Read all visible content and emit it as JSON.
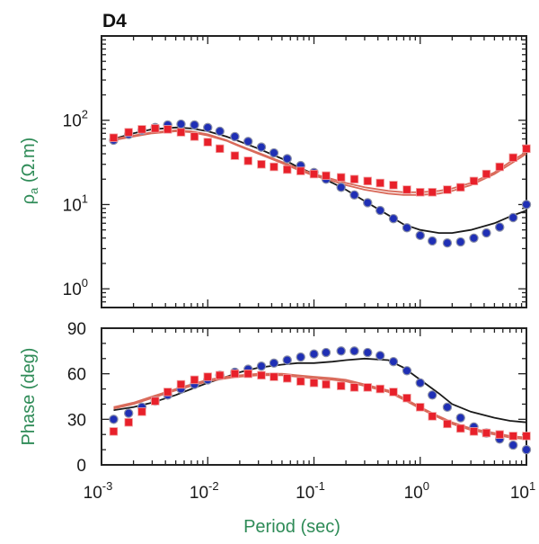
{
  "chart_data": [
    {
      "type": "scatter",
      "title": "D4",
      "ylabel_main": "ρ",
      "ylabel_sub": "a",
      "ylabel_unit": " (Ω.m)",
      "xscale": "log",
      "yscale": "log",
      "xlim": [
        0.001,
        10
      ],
      "ylim": [
        0.6,
        1000
      ],
      "yticks": [
        {
          "value": 1,
          "base": "10",
          "exp": "0"
        },
        {
          "value": 10,
          "base": "10",
          "exp": "1"
        },
        {
          "value": 100,
          "base": "10",
          "exp": "2"
        }
      ],
      "colors": {
        "blue": "#1f2fb5",
        "red": "#e8202a",
        "black_line": "#1a1a1a",
        "red_line": "#d96a5a"
      },
      "series": [
        {
          "marker": "circle",
          "color": "#1f2fb5",
          "x": [
            0.0013,
            0.0018,
            0.0024,
            0.0032,
            0.0042,
            0.0056,
            0.0075,
            0.01,
            0.013,
            0.018,
            0.024,
            0.032,
            0.042,
            0.056,
            0.075,
            0.1,
            0.13,
            0.18,
            0.24,
            0.32,
            0.42,
            0.56,
            0.75,
            1.0,
            1.3,
            1.8,
            2.4,
            3.2,
            4.2,
            5.6,
            7.5,
            10
          ],
          "y": [
            58,
            68,
            76,
            82,
            88,
            90,
            88,
            82,
            74,
            64,
            56,
            48,
            41,
            35,
            29,
            24,
            20,
            16,
            13,
            10.5,
            8.5,
            6.8,
            5.3,
            4.3,
            3.7,
            3.5,
            3.6,
            4.0,
            4.6,
            5.4,
            7.0,
            10
          ]
        },
        {
          "marker": "square",
          "color": "#e8202a",
          "x": [
            0.0013,
            0.0018,
            0.0024,
            0.0032,
            0.0042,
            0.0056,
            0.0075,
            0.01,
            0.013,
            0.018,
            0.024,
            0.032,
            0.042,
            0.056,
            0.075,
            0.1,
            0.13,
            0.18,
            0.24,
            0.32,
            0.42,
            0.56,
            0.75,
            1.0,
            1.3,
            1.8,
            2.4,
            3.2,
            4.2,
            5.6,
            7.5,
            10
          ],
          "y": [
            62,
            72,
            78,
            80,
            78,
            72,
            64,
            55,
            46,
            38,
            33,
            30,
            28,
            26,
            25,
            23,
            22,
            21,
            20,
            19,
            18,
            17,
            15,
            14,
            14,
            15,
            16,
            19,
            23,
            28,
            36,
            46
          ]
        },
        {
          "marker": "line",
          "color": "#1a1a1a",
          "x": [
            0.0013,
            0.002,
            0.003,
            0.005,
            0.007,
            0.01,
            0.015,
            0.02,
            0.03,
            0.05,
            0.07,
            0.1,
            0.15,
            0.2,
            0.3,
            0.5,
            0.7,
            1.0,
            1.5,
            2.0,
            3.0,
            5.0,
            7.0,
            10
          ],
          "y": [
            60,
            70,
            78,
            82,
            80,
            74,
            64,
            56,
            46,
            35,
            28,
            23,
            18,
            15,
            11,
            7.5,
            5.8,
            5.0,
            4.6,
            4.6,
            5.0,
            6.0,
            7.2,
            8.5
          ]
        },
        {
          "marker": "line",
          "color": "#d96a5a",
          "x": [
            0.0013,
            0.002,
            0.003,
            0.005,
            0.007,
            0.01,
            0.015,
            0.02,
            0.03,
            0.05,
            0.07,
            0.1,
            0.15,
            0.2,
            0.3,
            0.5,
            0.7,
            1.0,
            1.5,
            2.0,
            3.0,
            5.0,
            7.0,
            10
          ],
          "y": [
            60,
            66,
            72,
            76,
            74,
            68,
            58,
            50,
            41,
            32,
            27,
            23,
            20,
            18,
            16,
            14.5,
            14,
            14,
            14.5,
            15.5,
            18,
            24,
            32,
            42
          ]
        },
        {
          "marker": "line",
          "color": "#d96a5a",
          "x": [
            0.0013,
            0.002,
            0.003,
            0.005,
            0.007,
            0.01,
            0.015,
            0.02,
            0.03,
            0.05,
            0.07,
            0.1,
            0.15,
            0.2,
            0.3,
            0.5,
            0.7,
            1.0,
            1.5,
            2.0,
            3.0,
            5.0,
            7.0,
            10
          ],
          "y": [
            58,
            64,
            70,
            74,
            72,
            66,
            57,
            49,
            40,
            31,
            26,
            22,
            19,
            17,
            15,
            13.5,
            13,
            13,
            13.5,
            14.5,
            17,
            23,
            30,
            40
          ]
        }
      ]
    },
    {
      "type": "scatter",
      "ylabel": "Phase (deg)",
      "xlabel": "Period (sec)",
      "xscale": "log",
      "xlim": [
        0.001,
        10
      ],
      "ylim": [
        0,
        90
      ],
      "yticks": [
        "0",
        "30",
        "60",
        "90"
      ],
      "xticks": [
        {
          "value": 0.001,
          "base": "10",
          "exp": "-3"
        },
        {
          "value": 0.01,
          "base": "10",
          "exp": "-2"
        },
        {
          "value": 0.1,
          "base": "10",
          "exp": "-1"
        },
        {
          "value": 1,
          "base": "10",
          "exp": "0"
        },
        {
          "value": 10,
          "base": "10",
          "exp": "1"
        }
      ],
      "series": [
        {
          "marker": "circle",
          "color": "#1f2fb5",
          "x": [
            0.0013,
            0.0018,
            0.0024,
            0.0032,
            0.0042,
            0.0056,
            0.0075,
            0.01,
            0.013,
            0.018,
            0.024,
            0.032,
            0.042,
            0.056,
            0.075,
            0.1,
            0.13,
            0.18,
            0.24,
            0.32,
            0.42,
            0.56,
            0.75,
            1.0,
            1.3,
            1.8,
            2.4,
            3.2,
            4.2,
            5.6,
            7.5,
            10
          ],
          "y": [
            30,
            34,
            38,
            42,
            46,
            50,
            53,
            56,
            59,
            61,
            63,
            65,
            67,
            69,
            71,
            73,
            74,
            75,
            75,
            74,
            72,
            68,
            62,
            54,
            46,
            38,
            31,
            25,
            21,
            17,
            13,
            10
          ]
        },
        {
          "marker": "square",
          "color": "#e8202a",
          "x": [
            0.0013,
            0.0018,
            0.0024,
            0.0032,
            0.0042,
            0.0056,
            0.0075,
            0.01,
            0.013,
            0.018,
            0.024,
            0.032,
            0.042,
            0.056,
            0.075,
            0.1,
            0.13,
            0.18,
            0.24,
            0.32,
            0.42,
            0.56,
            0.75,
            1.0,
            1.3,
            1.8,
            2.4,
            3.2,
            4.2,
            5.6,
            7.5,
            10
          ],
          "y": [
            22,
            28,
            35,
            42,
            48,
            53,
            56,
            58,
            59,
            60,
            60,
            59,
            58,
            57,
            55,
            54,
            53,
            52,
            51,
            51,
            50,
            48,
            44,
            38,
            32,
            27,
            24,
            22,
            21,
            20,
            19,
            19
          ]
        },
        {
          "marker": "line",
          "color": "#1a1a1a",
          "x": [
            0.0013,
            0.002,
            0.003,
            0.005,
            0.007,
            0.01,
            0.015,
            0.02,
            0.03,
            0.05,
            0.07,
            0.1,
            0.15,
            0.2,
            0.3,
            0.5,
            0.7,
            1.0,
            1.5,
            2.0,
            3.0,
            5.0,
            7.0,
            10
          ],
          "y": [
            36,
            38,
            41,
            46,
            50,
            54,
            58,
            61,
            64,
            66,
            67,
            67,
            68,
            69,
            70,
            69,
            64,
            56,
            47,
            40,
            35,
            31,
            29,
            28
          ]
        },
        {
          "marker": "line",
          "color": "#d96a5a",
          "x": [
            0.0013,
            0.002,
            0.003,
            0.005,
            0.007,
            0.01,
            0.015,
            0.02,
            0.03,
            0.05,
            0.07,
            0.1,
            0.15,
            0.2,
            0.3,
            0.5,
            0.7,
            1.0,
            1.5,
            2.0,
            3.0,
            5.0,
            7.0,
            10
          ],
          "y": [
            38,
            41,
            45,
            50,
            53,
            56,
            58,
            59,
            60,
            60,
            59,
            58,
            57,
            56,
            53,
            49,
            44,
            38,
            32,
            28,
            24,
            21,
            19,
            18
          ]
        },
        {
          "marker": "line",
          "color": "#d96a5a",
          "x": [
            0.0013,
            0.002,
            0.003,
            0.005,
            0.007,
            0.01,
            0.015,
            0.02,
            0.03,
            0.05,
            0.07,
            0.1,
            0.15,
            0.2,
            0.3,
            0.5,
            0.7,
            1.0,
            1.5,
            2.0,
            3.0,
            5.0,
            7.0,
            10
          ],
          "y": [
            37,
            40,
            44,
            49,
            52,
            55,
            57,
            58,
            59,
            59,
            58,
            57,
            56,
            55,
            52,
            48,
            43,
            37,
            31,
            27,
            23,
            20,
            18,
            17
          ]
        }
      ]
    }
  ]
}
